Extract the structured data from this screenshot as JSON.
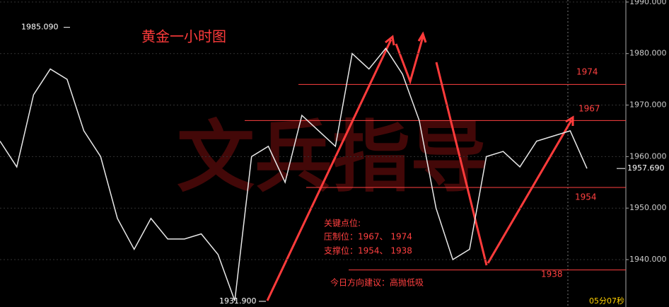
{
  "chart_data": {
    "type": "line",
    "title": "黄金一小时图",
    "watermark": "文兵指导",
    "categories": [
      null,
      null,
      null,
      null,
      null,
      null,
      null,
      null,
      null,
      null,
      null,
      null,
      null,
      null,
      null,
      null,
      null,
      null,
      null,
      null,
      null,
      null,
      null,
      null,
      null,
      null,
      null,
      null,
      null,
      null,
      null,
      null,
      null,
      null,
      null,
      null
    ],
    "series": [
      {
        "name": null,
        "color": "#e8e8e8",
        "values": [
          1963,
          1958,
          1972,
          1977,
          1975,
          1965,
          1960,
          1948,
          1942,
          1948,
          1944,
          1944,
          1945,
          1941,
          1932,
          1960,
          1962,
          1955,
          1968,
          1965,
          1962,
          1980,
          1977,
          1981,
          1976,
          1967,
          1950,
          1940,
          1942,
          1960,
          1961,
          1958,
          1963,
          1964,
          1965,
          1957.69
        ]
      }
    ],
    "ylim": [
      1930.8,
      1990.4
    ],
    "yticks": [
      {
        "value": 1940,
        "label": "1940.000"
      },
      {
        "value": 1950,
        "label": "1950.000"
      },
      {
        "value": 1960,
        "label": "1960.000"
      },
      {
        "value": 1970,
        "label": "1970.000"
      },
      {
        "value": 1980,
        "label": "1980.000"
      },
      {
        "value": 1990,
        "label": "1990.000"
      }
    ],
    "levels": [
      1974,
      1967,
      1954,
      1938
    ],
    "high": {
      "value": 1985.09,
      "label": "1985.090"
    },
    "low": {
      "value": 1931.9,
      "label": "1931.900"
    },
    "last_price": {
      "value": 1957.69,
      "label": "1957.690"
    },
    "notes": [
      "关键点位:",
      "压制位：1967、 1974",
      "支撑位：1954、 1938"
    ],
    "advice": "今日方向建议：高抛低吸",
    "timer": "05分07秒"
  }
}
